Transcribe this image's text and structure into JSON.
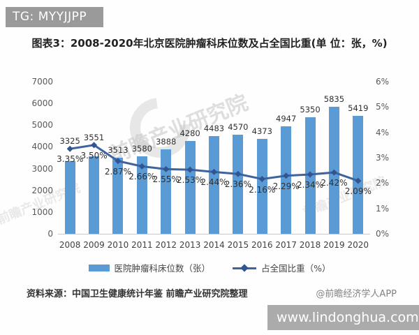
{
  "badges": {
    "top_left": "TG: MYYJJPP",
    "bottom_right": "www.lindonghua.com"
  },
  "title": "图表3：2008-2020年北京医院肿瘤科床位数及占全国比重(单 位：张，%)",
  "watermark": {
    "text": "前瞻产业研究院"
  },
  "chart_data": {
    "type": "bar+line",
    "title": "2008-2020年北京医院肿瘤科床位数及占全国比重",
    "categories": [
      "2008",
      "2009",
      "2010",
      "2011",
      "2012",
      "2013",
      "2014",
      "2015",
      "2016",
      "2017",
      "2018",
      "2019",
      "2020"
    ],
    "series": [
      {
        "name": "医院肿瘤科床位数（张）",
        "type": "bar",
        "axis": "left",
        "color": "#5B9BD5",
        "values": [
          3325,
          3551,
          3513,
          3580,
          3888,
          4280,
          4483,
          4570,
          4373,
          4947,
          5350,
          5835,
          5419
        ]
      },
      {
        "name": "占全国比重（%）",
        "type": "line",
        "axis": "right",
        "color": "#3E639F",
        "marker_color": "#2F5693",
        "values": [
          3.35,
          3.5,
          2.87,
          2.66,
          2.55,
          2.53,
          2.44,
          2.36,
          2.16,
          2.29,
          2.34,
          2.42,
          2.09
        ],
        "labels": [
          "3.35%",
          "3.50%",
          "2.87%",
          "2.66%",
          "2.55%",
          "2.53%",
          "2.44%",
          "2.36%",
          "2.16%",
          "2.29%",
          "2.34%",
          "2.42%",
          "2.09%"
        ]
      }
    ],
    "left_axis": {
      "min": 0,
      "max": 7000,
      "ticks": [
        7000,
        6000,
        5000,
        4000,
        3000,
        2000,
        1000,
        0
      ]
    },
    "right_axis": {
      "min": 0,
      "max": 6,
      "ticks": [
        "6%",
        "5%",
        "4%",
        "3%",
        "2%",
        "1%",
        "0%"
      ]
    },
    "grid": false,
    "legend_position": "bottom"
  },
  "legend": {
    "bar_label": "医院肿瘤科床位数（张）",
    "line_label": "占全国比重（%）"
  },
  "footer": {
    "source": "资料来源：中国卫生健康统计年鉴 前瞻产业研究院整理",
    "credit": "@前瞻经济学人APP"
  }
}
